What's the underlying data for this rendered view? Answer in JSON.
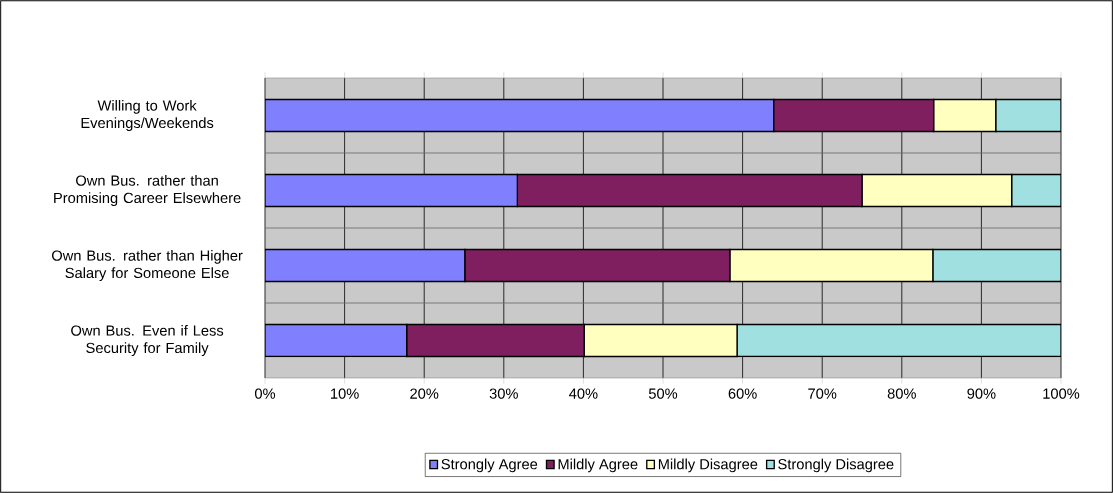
{
  "chart_data": {
    "type": "bar",
    "orientation": "horizontal",
    "stacked": true,
    "categories": [
      "Willing to Work Evenings/Weekends",
      "Own Bus. rather than Promising Career Elsewhere",
      "Own Bus. rather than Higher Salary for Someone Else",
      "Own Bus. Even if Less Security for Family"
    ],
    "series": [
      {
        "name": "Strongly Agree",
        "color": "#8080ff",
        "values": [
          63.9,
          31.7,
          25.1,
          17.8
        ]
      },
      {
        "name": "Mildly Agree",
        "color": "#7f1f5f",
        "values": [
          20.1,
          43.3,
          33.3,
          22.3
        ]
      },
      {
        "name": "Mildly Disagree",
        "color": "#ffffc0",
        "values": [
          7.8,
          18.8,
          25.5,
          19.2
        ]
      },
      {
        "name": "Strongly Disagree",
        "color": "#a0e0e0",
        "values": [
          8.2,
          6.2,
          16.1,
          40.7
        ]
      }
    ],
    "xlim": [
      0,
      100
    ],
    "xticks": [
      {
        "value": 0,
        "label": "0%"
      },
      {
        "value": 10,
        "label": "10%"
      },
      {
        "value": 20,
        "label": "20%"
      },
      {
        "value": 30,
        "label": "30%"
      },
      {
        "value": 40,
        "label": "40%"
      },
      {
        "value": 50,
        "label": "50%"
      },
      {
        "value": 60,
        "label": "60%"
      },
      {
        "value": 70,
        "label": "70%"
      },
      {
        "value": 80,
        "label": "80%"
      },
      {
        "value": 90,
        "label": "90%"
      },
      {
        "value": 100,
        "label": "100%"
      }
    ],
    "grid": true,
    "legend": "bottom"
  }
}
